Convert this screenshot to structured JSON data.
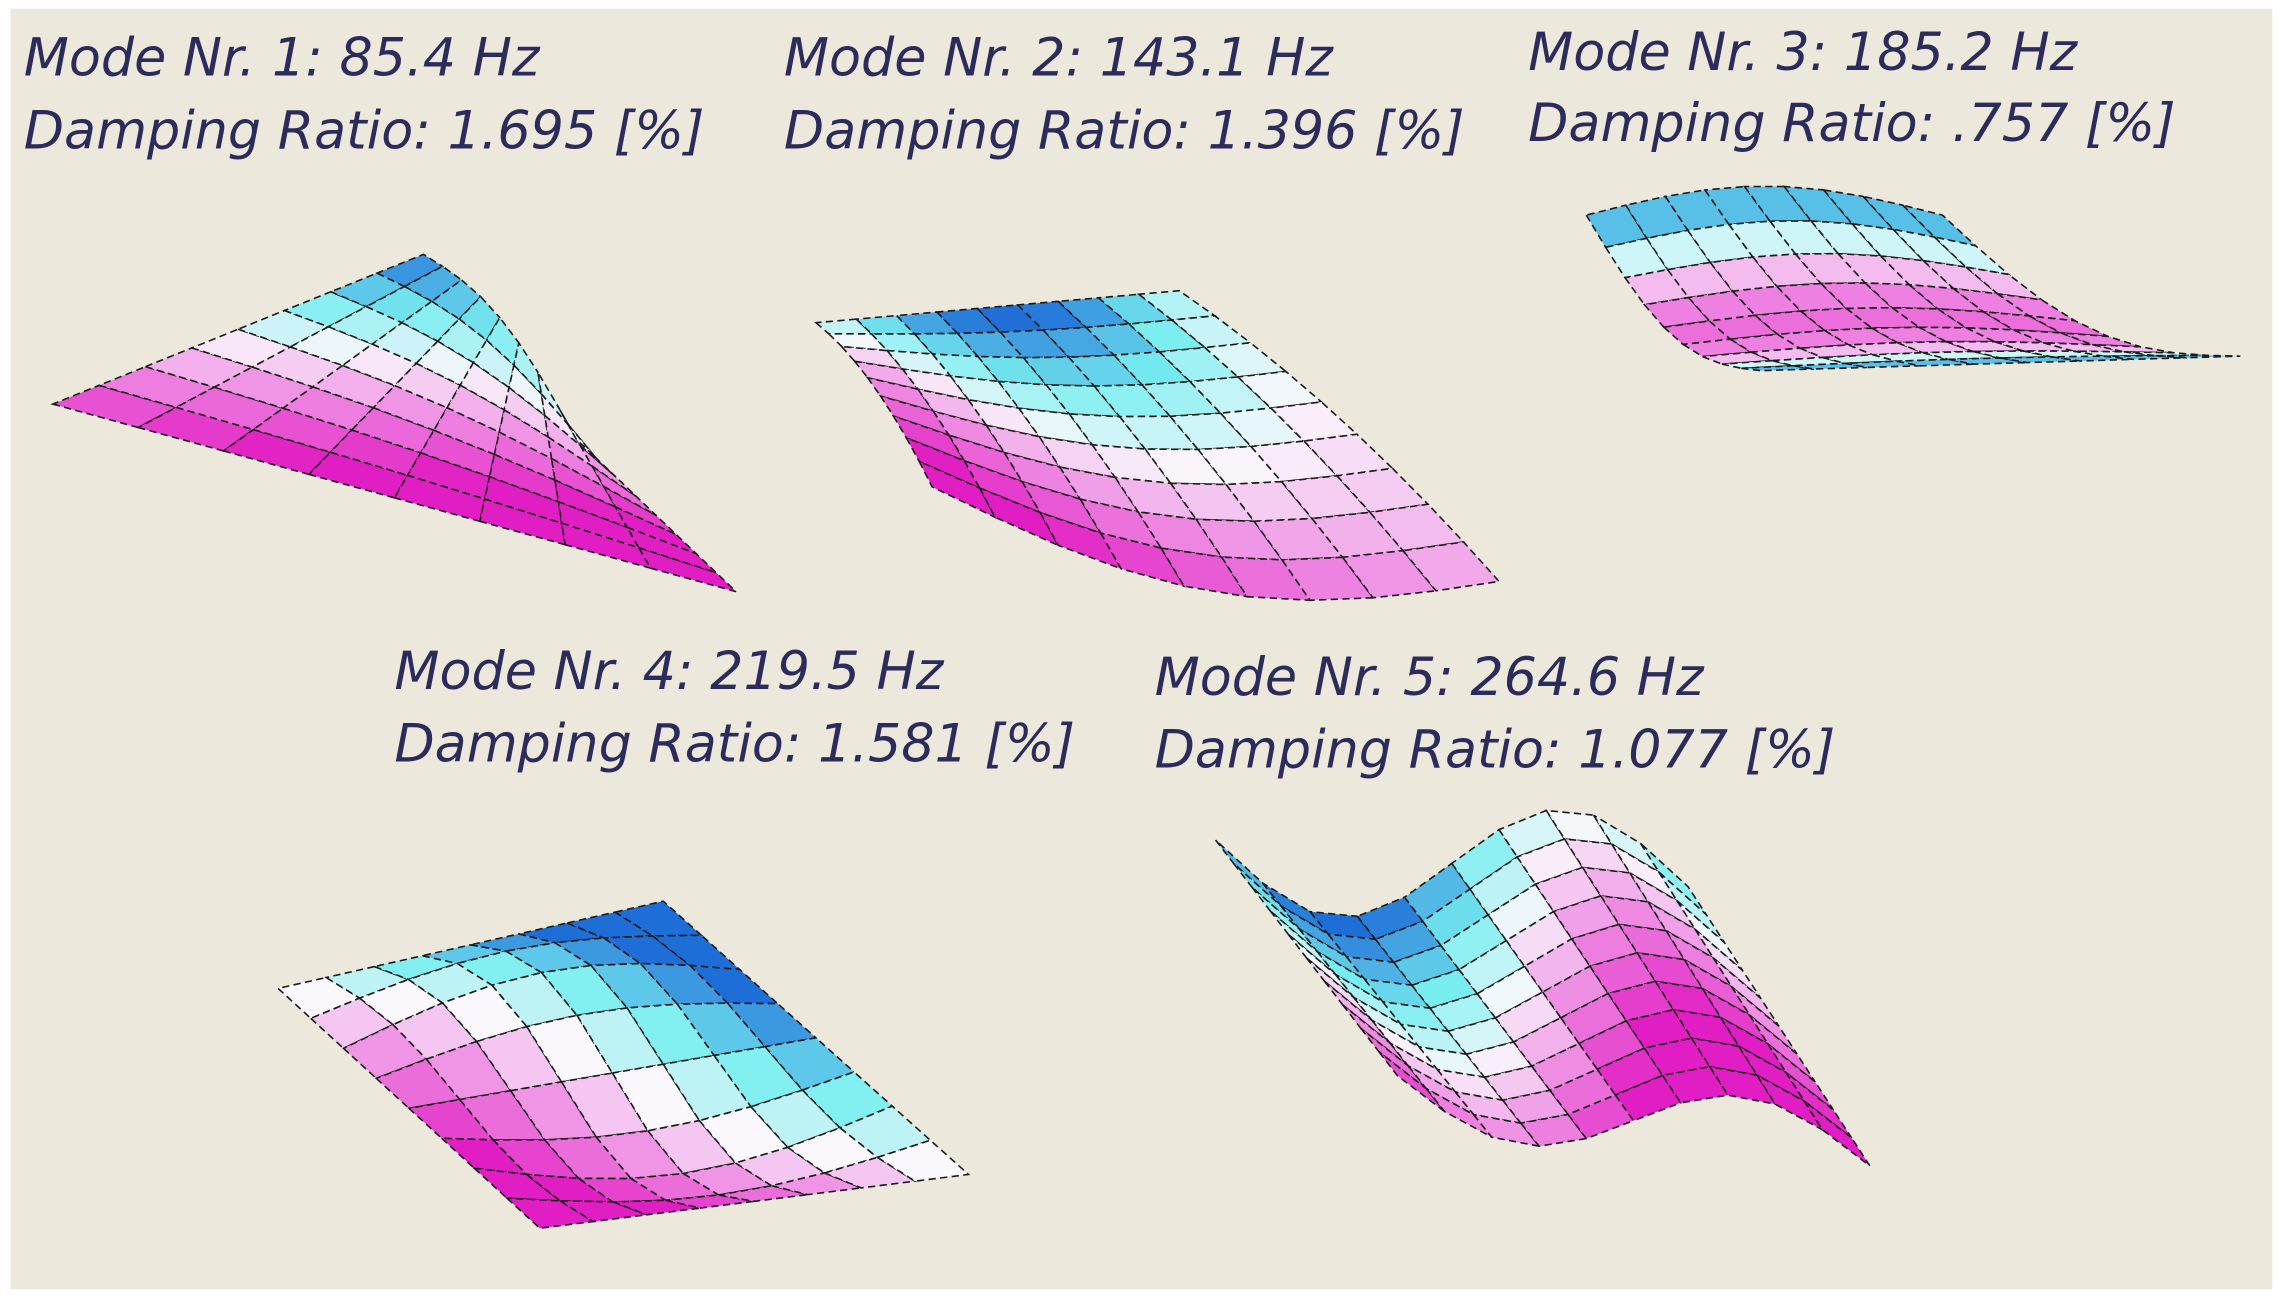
{
  "modes": [
    {
      "frequency_line": "Mode Nr. 1: 85.4 Hz",
      "damping_line": "Damping Ratio: 1.695 [%]"
    },
    {
      "frequency_line": "Mode Nr. 2: 143.1 Hz",
      "damping_line": "Damping Ratio: 1.396 [%]"
    },
    {
      "frequency_line": "Mode Nr. 3: 185.2 Hz",
      "damping_line": "Damping Ratio: .757 [%]"
    },
    {
      "frequency_line": "Mode Nr. 4: 219.5 Hz",
      "damping_line": "Damping Ratio: 1.581 [%]"
    },
    {
      "frequency_line": "Mode Nr. 5: 264.6 Hz",
      "damping_line": "Damping Ratio: 1.077 [%]"
    }
  ]
}
